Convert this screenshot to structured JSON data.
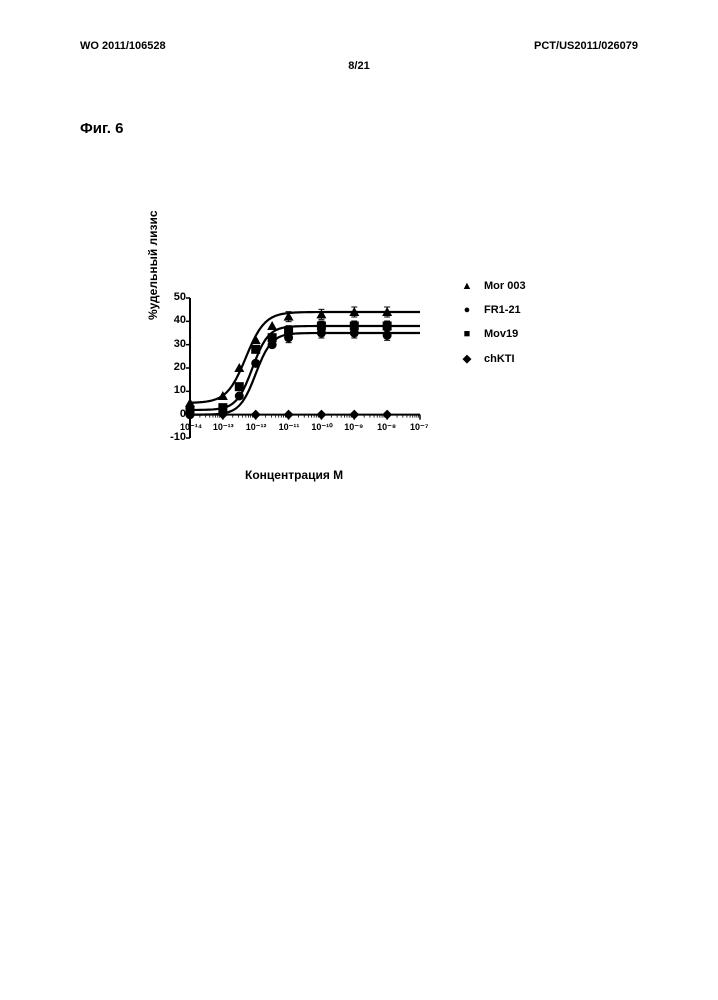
{
  "header": {
    "left": "WO 2011/106528",
    "right": "PCT/US2011/026079",
    "page": "8/21"
  },
  "figure_label": "Фиг. 6",
  "chart": {
    "type": "line",
    "ylabel": "%удельный лизис",
    "xlabel": "Концентрация М",
    "ylim": [
      -10,
      50
    ],
    "ytick_step": 10,
    "yticks": [
      "-10",
      "0",
      "10",
      "20",
      "30",
      "40",
      "50"
    ],
    "xlim_log": [
      -14,
      -7
    ],
    "xticks": [
      "10⁻¹⁴",
      "10⁻¹³",
      "10⁻¹²",
      "10⁻¹¹",
      "10⁻¹⁰",
      "10⁻⁹",
      "10⁻⁸",
      "10⁻⁷"
    ],
    "background_color": "#ffffff",
    "axis_color": "#000000",
    "line_width": 2.2,
    "marker_size": 5,
    "series": [
      {
        "name": "Mor 003",
        "marker": "triangle",
        "color": "#000000",
        "points": [
          {
            "x": -14,
            "y": 5
          },
          {
            "x": -13,
            "y": 8
          },
          {
            "x": -12.5,
            "y": 20
          },
          {
            "x": -12,
            "y": 32
          },
          {
            "x": -11.5,
            "y": 38
          },
          {
            "x": -11,
            "y": 42
          },
          {
            "x": -10,
            "y": 43
          },
          {
            "x": -9,
            "y": 44
          },
          {
            "x": -8,
            "y": 44
          }
        ]
      },
      {
        "name": "FR1-21",
        "marker": "circle",
        "color": "#000000",
        "points": [
          {
            "x": -14,
            "y": 0
          },
          {
            "x": -13,
            "y": 1
          },
          {
            "x": -12.5,
            "y": 8
          },
          {
            "x": -12,
            "y": 22
          },
          {
            "x": -11.5,
            "y": 30
          },
          {
            "x": -11,
            "y": 33
          },
          {
            "x": -10,
            "y": 35
          },
          {
            "x": -9,
            "y": 35
          },
          {
            "x": -8,
            "y": 34
          }
        ]
      },
      {
        "name": "Mov19",
        "marker": "square",
        "color": "#000000",
        "points": [
          {
            "x": -14,
            "y": 2
          },
          {
            "x": -13,
            "y": 3
          },
          {
            "x": -12.5,
            "y": 12
          },
          {
            "x": -12,
            "y": 28
          },
          {
            "x": -11.5,
            "y": 33
          },
          {
            "x": -11,
            "y": 36
          },
          {
            "x": -10,
            "y": 38
          },
          {
            "x": -9,
            "y": 38
          },
          {
            "x": -8,
            "y": 38
          }
        ]
      },
      {
        "name": "chKTI",
        "marker": "diamond",
        "color": "#000000",
        "points": [
          {
            "x": -14,
            "y": 0
          },
          {
            "x": -13,
            "y": 0
          },
          {
            "x": -12,
            "y": 0
          },
          {
            "x": -11,
            "y": 0
          },
          {
            "x": -10,
            "y": 0
          },
          {
            "x": -9,
            "y": 0
          },
          {
            "x": -8,
            "y": 0
          }
        ]
      }
    ],
    "legend": [
      {
        "marker": "▲",
        "label": "Mor 003"
      },
      {
        "marker": "●",
        "label": "FR1-21"
      },
      {
        "marker": "■",
        "label": "Mov19"
      },
      {
        "marker": "◆",
        "label": "chKTI"
      }
    ]
  }
}
